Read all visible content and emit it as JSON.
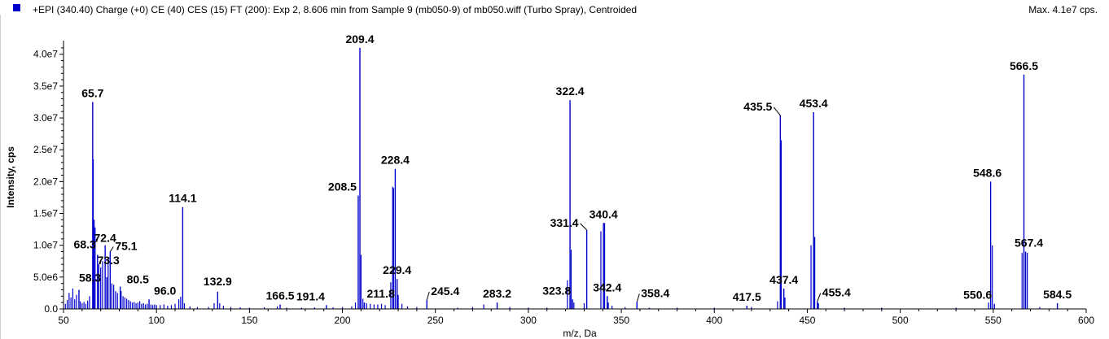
{
  "header": {
    "title": "+EPI (340.40) Charge (+0) CE (40) CES (15) FT (200): Exp 2, 8.606 min from Sample 9 (mb050-9) of mb050.wiff (Turbo Spray), Centroided",
    "max_label": "Max. 4.1e7 cps."
  },
  "colors": {
    "series": "#0000cc",
    "axis": "#000000",
    "leader": "#000000"
  },
  "chart_data": {
    "type": "bar",
    "xlabel": "m/z, Da",
    "ylabel": "Intensity, cps",
    "xlim": [
      50,
      600
    ],
    "ylim": [
      0,
      41500000
    ],
    "x_ticks": [
      50,
      100,
      150,
      200,
      250,
      300,
      350,
      400,
      450,
      500,
      550,
      600
    ],
    "x_tick_labels": [
      "50",
      "100",
      "150",
      "200",
      "250",
      "300",
      "350",
      "400",
      "450",
      "500",
      "550",
      "600"
    ],
    "y_ticks": [
      0,
      5000000,
      10000000,
      15000000,
      20000000,
      25000000,
      30000000,
      35000000,
      40000000
    ],
    "y_tick_labels": [
      "0.0",
      "5.0e6",
      "1.0e7",
      "1.5e7",
      "2.0e7",
      "2.5e7",
      "3.0e7",
      "3.5e7",
      "4.0e7"
    ],
    "grid": false,
    "peaks": [
      {
        "mz": 58.3,
        "intensity": 3000000,
        "label": "58.3"
      },
      {
        "mz": 65.7,
        "intensity": 32500000,
        "label": "65.7"
      },
      {
        "mz": 68.3,
        "intensity": 8500000,
        "label": "68.3"
      },
      {
        "mz": 72.4,
        "intensity": 10000000,
        "label": "72.4"
      },
      {
        "mz": 73.3,
        "intensity": 5000000,
        "label": "73.3"
      },
      {
        "mz": 75.1,
        "intensity": 9000000,
        "label": "75.1"
      },
      {
        "mz": 80.5,
        "intensity": 3500000,
        "label": "80.5"
      },
      {
        "mz": 96.0,
        "intensity": 1500000,
        "label": "96.0"
      },
      {
        "mz": 114.1,
        "intensity": 16000000,
        "label": "114.1"
      },
      {
        "mz": 132.9,
        "intensity": 2700000,
        "label": "132.9"
      },
      {
        "mz": 166.5,
        "intensity": 700000,
        "label": "166.5"
      },
      {
        "mz": 191.4,
        "intensity": 600000,
        "label": "191.4"
      },
      {
        "mz": 208.5,
        "intensity": 17800000,
        "label": "208.5"
      },
      {
        "mz": 209.4,
        "intensity": 41000000,
        "label": "209.4"
      },
      {
        "mz": 211.8,
        "intensity": 1000000,
        "label": "211.8"
      },
      {
        "mz": 228.4,
        "intensity": 22000000,
        "label": "228.4"
      },
      {
        "mz": 229.4,
        "intensity": 4700000,
        "label": "229.4"
      },
      {
        "mz": 245.4,
        "intensity": 1400000,
        "label": "245.4"
      },
      {
        "mz": 283.2,
        "intensity": 1000000,
        "label": "283.2"
      },
      {
        "mz": 322.4,
        "intensity": 32800000,
        "label": "322.4"
      },
      {
        "mz": 323.8,
        "intensity": 1500000,
        "label": "323.8"
      },
      {
        "mz": 331.4,
        "intensity": 12400000,
        "label": "331.4"
      },
      {
        "mz": 340.4,
        "intensity": 13500000,
        "label": "340.4"
      },
      {
        "mz": 342.4,
        "intensity": 2000000,
        "label": "342.4"
      },
      {
        "mz": 358.4,
        "intensity": 1100000,
        "label": "358.4"
      },
      {
        "mz": 417.5,
        "intensity": 500000,
        "label": "417.5"
      },
      {
        "mz": 435.5,
        "intensity": 30400000,
        "label": "435.5"
      },
      {
        "mz": 437.4,
        "intensity": 3200000,
        "label": "437.4"
      },
      {
        "mz": 453.4,
        "intensity": 30900000,
        "label": "453.4"
      },
      {
        "mz": 455.4,
        "intensity": 1200000,
        "label": "455.4"
      },
      {
        "mz": 548.6,
        "intensity": 20000000,
        "label": "548.6"
      },
      {
        "mz": 550.6,
        "intensity": 800000,
        "label": "550.6"
      },
      {
        "mz": 566.5,
        "intensity": 36800000,
        "label": "566.5"
      },
      {
        "mz": 567.4,
        "intensity": 9000000,
        "label": "567.4"
      },
      {
        "mz": 584.5,
        "intensity": 900000,
        "label": "584.5"
      }
    ],
    "minor_peaks": [
      {
        "mz": 51.0,
        "intensity": 800000
      },
      {
        "mz": 52.0,
        "intensity": 1400000
      },
      {
        "mz": 53.0,
        "intensity": 2500000
      },
      {
        "mz": 54.0,
        "intensity": 1800000
      },
      {
        "mz": 55.0,
        "intensity": 3200000
      },
      {
        "mz": 56.0,
        "intensity": 1500000
      },
      {
        "mz": 57.0,
        "intensity": 2200000
      },
      {
        "mz": 59.0,
        "intensity": 1200000
      },
      {
        "mz": 60.0,
        "intensity": 900000
      },
      {
        "mz": 61.0,
        "intensity": 1100000
      },
      {
        "mz": 62.0,
        "intensity": 800000
      },
      {
        "mz": 63.0,
        "intensity": 1300000
      },
      {
        "mz": 64.0,
        "intensity": 2000000
      },
      {
        "mz": 66.0,
        "intensity": 23500000
      },
      {
        "mz": 66.5,
        "intensity": 14000000
      },
      {
        "mz": 67.0,
        "intensity": 12800000
      },
      {
        "mz": 69.0,
        "intensity": 7000000
      },
      {
        "mz": 70.0,
        "intensity": 6500000
      },
      {
        "mz": 71.0,
        "intensity": 7500000
      },
      {
        "mz": 74.0,
        "intensity": 8000000
      },
      {
        "mz": 76.0,
        "intensity": 4000000
      },
      {
        "mz": 77.0,
        "intensity": 3800000
      },
      {
        "mz": 78.0,
        "intensity": 2800000
      },
      {
        "mz": 79.0,
        "intensity": 2500000
      },
      {
        "mz": 81.0,
        "intensity": 2800000
      },
      {
        "mz": 82.0,
        "intensity": 2000000
      },
      {
        "mz": 83.0,
        "intensity": 1800000
      },
      {
        "mz": 84.0,
        "intensity": 1600000
      },
      {
        "mz": 85.0,
        "intensity": 1400000
      },
      {
        "mz": 86.0,
        "intensity": 1200000
      },
      {
        "mz": 87.0,
        "intensity": 1000000
      },
      {
        "mz": 88.0,
        "intensity": 1100000
      },
      {
        "mz": 89.0,
        "intensity": 900000
      },
      {
        "mz": 90.0,
        "intensity": 1000000
      },
      {
        "mz": 91.0,
        "intensity": 1200000
      },
      {
        "mz": 92.0,
        "intensity": 800000
      },
      {
        "mz": 93.0,
        "intensity": 900000
      },
      {
        "mz": 94.0,
        "intensity": 700000
      },
      {
        "mz": 95.0,
        "intensity": 800000
      },
      {
        "mz": 97.0,
        "intensity": 700000
      },
      {
        "mz": 98.0,
        "intensity": 600000
      },
      {
        "mz": 99.0,
        "intensity": 700000
      },
      {
        "mz": 100.0,
        "intensity": 600000
      },
      {
        "mz": 102.0,
        "intensity": 600000
      },
      {
        "mz": 104.0,
        "intensity": 700000
      },
      {
        "mz": 106.0,
        "intensity": 500000
      },
      {
        "mz": 108.0,
        "intensity": 600000
      },
      {
        "mz": 110.0,
        "intensity": 800000
      },
      {
        "mz": 112.0,
        "intensity": 1500000
      },
      {
        "mz": 113.0,
        "intensity": 1900000
      },
      {
        "mz": 115.0,
        "intensity": 900000
      },
      {
        "mz": 118.0,
        "intensity": 400000
      },
      {
        "mz": 122.0,
        "intensity": 300000
      },
      {
        "mz": 128.0,
        "intensity": 300000
      },
      {
        "mz": 131.0,
        "intensity": 900000
      },
      {
        "mz": 134.0,
        "intensity": 900000
      },
      {
        "mz": 136.0,
        "intensity": 500000
      },
      {
        "mz": 140.0,
        "intensity": 300000
      },
      {
        "mz": 145.0,
        "intensity": 250000
      },
      {
        "mz": 150.0,
        "intensity": 200000
      },
      {
        "mz": 158.0,
        "intensity": 250000
      },
      {
        "mz": 165.0,
        "intensity": 400000
      },
      {
        "mz": 170.0,
        "intensity": 200000
      },
      {
        "mz": 178.0,
        "intensity": 200000
      },
      {
        "mz": 185.0,
        "intensity": 250000
      },
      {
        "mz": 195.0,
        "intensity": 250000
      },
      {
        "mz": 200.0,
        "intensity": 300000
      },
      {
        "mz": 205.0,
        "intensity": 400000
      },
      {
        "mz": 207.0,
        "intensity": 1000000
      },
      {
        "mz": 210.0,
        "intensity": 8500000
      },
      {
        "mz": 211.0,
        "intensity": 1600000
      },
      {
        "mz": 213.0,
        "intensity": 900000
      },
      {
        "mz": 215.0,
        "intensity": 800000
      },
      {
        "mz": 217.0,
        "intensity": 700000
      },
      {
        "mz": 219.0,
        "intensity": 700000
      },
      {
        "mz": 221.0,
        "intensity": 800000
      },
      {
        "mz": 223.0,
        "intensity": 600000
      },
      {
        "mz": 226.0,
        "intensity": 4200000
      },
      {
        "mz": 227.0,
        "intensity": 19200000
      },
      {
        "mz": 227.5,
        "intensity": 19000000
      },
      {
        "mz": 230.0,
        "intensity": 2200000
      },
      {
        "mz": 232.0,
        "intensity": 800000
      },
      {
        "mz": 235.0,
        "intensity": 400000
      },
      {
        "mz": 240.0,
        "intensity": 300000
      },
      {
        "mz": 262.0,
        "intensity": 200000
      },
      {
        "mz": 270.0,
        "intensity": 300000
      },
      {
        "mz": 276.0,
        "intensity": 700000
      },
      {
        "mz": 290.0,
        "intensity": 300000
      },
      {
        "mz": 300.0,
        "intensity": 200000
      },
      {
        "mz": 310.0,
        "intensity": 200000
      },
      {
        "mz": 321.0,
        "intensity": 4500000
      },
      {
        "mz": 323.0,
        "intensity": 9300000
      },
      {
        "mz": 324.5,
        "intensity": 1000000
      },
      {
        "mz": 330.0,
        "intensity": 900000
      },
      {
        "mz": 339.0,
        "intensity": 12200000
      },
      {
        "mz": 341.0,
        "intensity": 13500000
      },
      {
        "mz": 343.0,
        "intensity": 1000000
      },
      {
        "mz": 345.0,
        "intensity": 500000
      },
      {
        "mz": 352.0,
        "intensity": 300000
      },
      {
        "mz": 365.0,
        "intensity": 200000
      },
      {
        "mz": 380.0,
        "intensity": 200000
      },
      {
        "mz": 400.0,
        "intensity": 200000
      },
      {
        "mz": 420.0,
        "intensity": 300000
      },
      {
        "mz": 434.0,
        "intensity": 1200000
      },
      {
        "mz": 436.0,
        "intensity": 26500000
      },
      {
        "mz": 438.0,
        "intensity": 1800000
      },
      {
        "mz": 452.0,
        "intensity": 10000000
      },
      {
        "mz": 454.0,
        "intensity": 11300000
      },
      {
        "mz": 456.0,
        "intensity": 900000
      },
      {
        "mz": 470.0,
        "intensity": 200000
      },
      {
        "mz": 490.0,
        "intensity": 200000
      },
      {
        "mz": 530.0,
        "intensity": 200000
      },
      {
        "mz": 547.5,
        "intensity": 1000000
      },
      {
        "mz": 549.5,
        "intensity": 10000000
      },
      {
        "mz": 565.5,
        "intensity": 8800000
      },
      {
        "mz": 568.3,
        "intensity": 8800000
      },
      {
        "mz": 575.0,
        "intensity": 300000
      }
    ]
  }
}
